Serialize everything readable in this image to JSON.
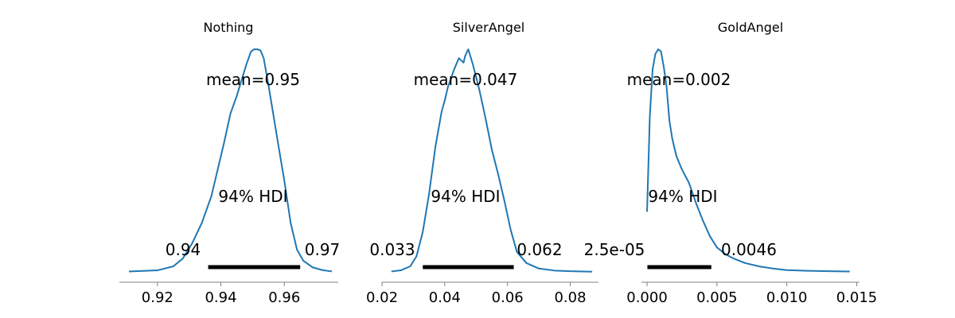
{
  "chart_data": [
    {
      "type": "area",
      "title": "Nothing",
      "mean_label": "mean=0.95",
      "hdi_label": "94% HDI",
      "hdi_low_label": "0.94",
      "hdi_high_label": "0.97",
      "hdi": [
        0.936,
        0.965
      ],
      "xlim": [
        0.908,
        0.977
      ],
      "xticks": [
        0.92,
        0.94,
        0.96
      ],
      "xtick_labels": [
        "0.92",
        "0.94",
        "0.96"
      ],
      "density_x": [
        0.911,
        0.92,
        0.925,
        0.928,
        0.931,
        0.934,
        0.937,
        0.939,
        0.941,
        0.943,
        0.945,
        0.9465,
        0.948,
        0.9495,
        0.9505,
        0.9515,
        0.9525,
        0.9535,
        0.955,
        0.9565,
        0.958,
        0.96,
        0.962,
        0.964,
        0.966,
        0.969,
        0.972,
        0.975
      ],
      "density_y": [
        0.002,
        0.007,
        0.025,
        0.06,
        0.13,
        0.22,
        0.34,
        0.46,
        0.58,
        0.71,
        0.79,
        0.86,
        0.93,
        0.99,
        1.0,
        1.0,
        0.995,
        0.96,
        0.84,
        0.71,
        0.58,
        0.41,
        0.22,
        0.1,
        0.05,
        0.02,
        0.008,
        0.002
      ],
      "color": "#1f77b4"
    },
    {
      "type": "area",
      "title": "SilverAngel",
      "mean_label": "mean=0.047",
      "hdi_label": "94% HDI",
      "hdi_low_label": "0.033",
      "hdi_high_label": "0.062",
      "hdi": [
        0.033,
        0.062
      ],
      "xlim": [
        0.02,
        0.089
      ],
      "xticks": [
        0.02,
        0.04,
        0.06,
        0.08
      ],
      "xtick_labels": [
        "0.02",
        "0.04",
        "0.06",
        "0.08"
      ],
      "density_x": [
        0.023,
        0.026,
        0.029,
        0.031,
        0.033,
        0.035,
        0.037,
        0.039,
        0.04,
        0.041,
        0.043,
        0.0445,
        0.046,
        0.0465,
        0.0475,
        0.049,
        0.051,
        0.053,
        0.055,
        0.057,
        0.059,
        0.061,
        0.063,
        0.066,
        0.07,
        0.075,
        0.08,
        0.087
      ],
      "density_y": [
        0.002,
        0.007,
        0.025,
        0.07,
        0.18,
        0.35,
        0.56,
        0.72,
        0.77,
        0.83,
        0.91,
        0.96,
        0.94,
        0.97,
        1.0,
        0.93,
        0.82,
        0.69,
        0.55,
        0.44,
        0.32,
        0.19,
        0.09,
        0.04,
        0.015,
        0.006,
        0.003,
        0.001
      ],
      "color": "#1f77b4"
    },
    {
      "type": "area",
      "title": "GoldAngel",
      "mean_label": "mean=0.002",
      "hdi_label": "94% HDI",
      "hdi_low_label": "2.5e-05",
      "hdi_high_label": "0.0046",
      "hdi": [
        2.5e-05,
        0.0046
      ],
      "xlim": [
        -0.0004,
        0.0152
      ],
      "xticks": [
        0.0,
        0.005,
        0.01,
        0.015
      ],
      "xtick_labels": [
        "0.000",
        "0.005",
        "0.010",
        "0.015"
      ],
      "density_x": [
        0.0,
        0.0002,
        0.0004,
        0.0006,
        0.0008,
        0.001,
        0.0012,
        0.0014,
        0.0016,
        0.0018,
        0.0021,
        0.0025,
        0.003,
        0.0035,
        0.004,
        0.0045,
        0.005,
        0.0056,
        0.0062,
        0.007,
        0.008,
        0.009,
        0.01,
        0.0115,
        0.013,
        0.0145
      ],
      "density_y": [
        0.27,
        0.7,
        0.91,
        0.98,
        1.0,
        0.99,
        0.92,
        0.83,
        0.68,
        0.6,
        0.52,
        0.46,
        0.4,
        0.31,
        0.23,
        0.16,
        0.11,
        0.08,
        0.06,
        0.04,
        0.025,
        0.015,
        0.008,
        0.005,
        0.003,
        0.002
      ],
      "color": "#1f77b4"
    }
  ]
}
